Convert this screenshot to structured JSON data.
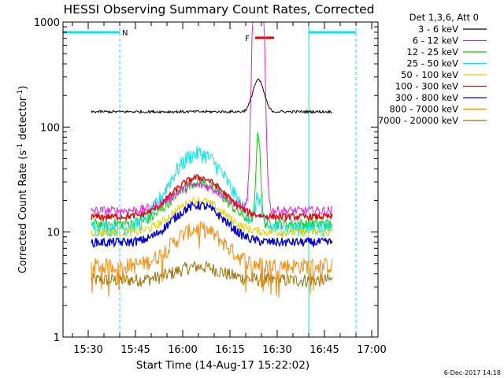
{
  "chart_data": {
    "type": "line",
    "title": "HESSI Observing Summary Count Rates, Corrected",
    "xlabel": "Start Time (14-Aug-17 15:22:02)",
    "ylabel_main": "Corrected Count Rate (s",
    "ylabel_sup1": "-1",
    "ylabel_mid": " detector",
    "ylabel_sup2": "-1",
    "ylabel_end": ")",
    "yscale": "log",
    "ylim": [
      1,
      1000
    ],
    "xlim": [
      "15:22",
      "17:02"
    ],
    "x_ticks": [
      "15:30",
      "15:45",
      "16:00",
      "16:15",
      "16:30",
      "16:45",
      "17:00"
    ],
    "x_tick_minutes": [
      30,
      45,
      60,
      75,
      90,
      105,
      120
    ],
    "y_ticks": [
      "1",
      "10",
      "100",
      "1000"
    ],
    "y_tick_values": [
      1,
      10,
      100,
      1000
    ],
    "legend_header": "Det 1,3,6, Att 0",
    "legend_position": "right, outside plot",
    "series": [
      {
        "name": "3 - 6 keV",
        "color": "#000000"
      },
      {
        "name": "6 - 12 keV",
        "color": "#e020e0"
      },
      {
        "name": "12 - 25 keV",
        "color": "#00d000"
      },
      {
        "name": "25 - 50 keV",
        "color": "#00e8e8"
      },
      {
        "name": "50 - 100 keV",
        "color": "#e8d000"
      },
      {
        "name": "100 - 300 keV",
        "color": "#f00000"
      },
      {
        "name": "300 - 800 keV",
        "color": "#0000f0"
      },
      {
        "name": "800 - 7000 keV",
        "color": "#ff8800"
      },
      {
        "name": "7000 - 20000 keV",
        "color": "#a07000"
      }
    ],
    "flag_labels": {
      "night": "N",
      "flare": "F"
    },
    "night_start": [
      "15:22",
      "15:40"
    ],
    "night_end": [
      "16:40",
      "16:55"
    ],
    "flare_band": [
      "16:23",
      "16:29"
    ],
    "footer": "6-Dec-2017 14:18"
  }
}
